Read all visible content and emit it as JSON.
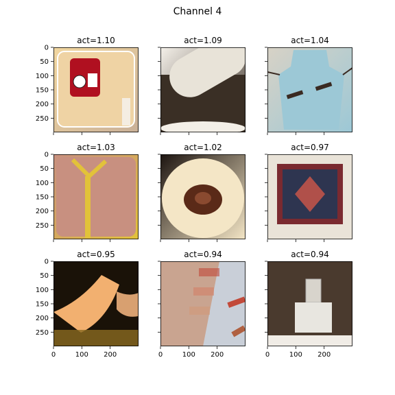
{
  "figure": {
    "title": "Channel 4"
  },
  "chart_data": {
    "type": "image-grid",
    "title": "Channel 4",
    "rows": 3,
    "cols": 3,
    "xlim": [
      0,
      299
    ],
    "ylim": [
      299,
      0
    ],
    "xticks": [
      0,
      100,
      200
    ],
    "yticks": [
      0,
      50,
      100,
      150,
      200,
      250
    ],
    "shared_axes": true,
    "panels": [
      {
        "title": "act=1.10",
        "icon": "red-wall-clock-photo",
        "colors": [
          "#f2d7a0",
          "#c9b098",
          "#b01020"
        ]
      },
      {
        "title": "act=1.09",
        "icon": "mortar-pestle-photo",
        "colors": [
          "#f5f1ea",
          "#3a2f25",
          "#e8e3d8"
        ]
      },
      {
        "title": "act=1.04",
        "icon": "blue-apron-photo",
        "colors": [
          "#d8d2c6",
          "#9cc8d6",
          "#3a2a22"
        ]
      },
      {
        "title": "act=1.03",
        "icon": "measuring-tape-chest-photo",
        "colors": [
          "#c89080",
          "#e2c23a",
          "#b06f5e"
        ]
      },
      {
        "title": "act=1.02",
        "icon": "soup-bowl-photo",
        "colors": [
          "#1c1410",
          "#f4e6c6",
          "#5a2a18"
        ]
      },
      {
        "title": "act=0.97",
        "icon": "oriental-rug-photo",
        "colors": [
          "#e9e3d8",
          "#7a2a30",
          "#2e3550"
        ]
      },
      {
        "title": "act=0.95",
        "icon": "wrist-anklet-photo",
        "colors": [
          "#1a1208",
          "#f2b070",
          "#8a6a20"
        ]
      },
      {
        "title": "act=0.94",
        "icon": "lipstick-swatches-photo",
        "colors": [
          "#c9cfd8",
          "#d9a58c",
          "#c24a3a"
        ]
      },
      {
        "title": "act=0.94",
        "icon": "mirror-selfie-photo",
        "colors": [
          "#4a3a2e",
          "#d8d4cc",
          "#f0ece6"
        ]
      }
    ]
  }
}
